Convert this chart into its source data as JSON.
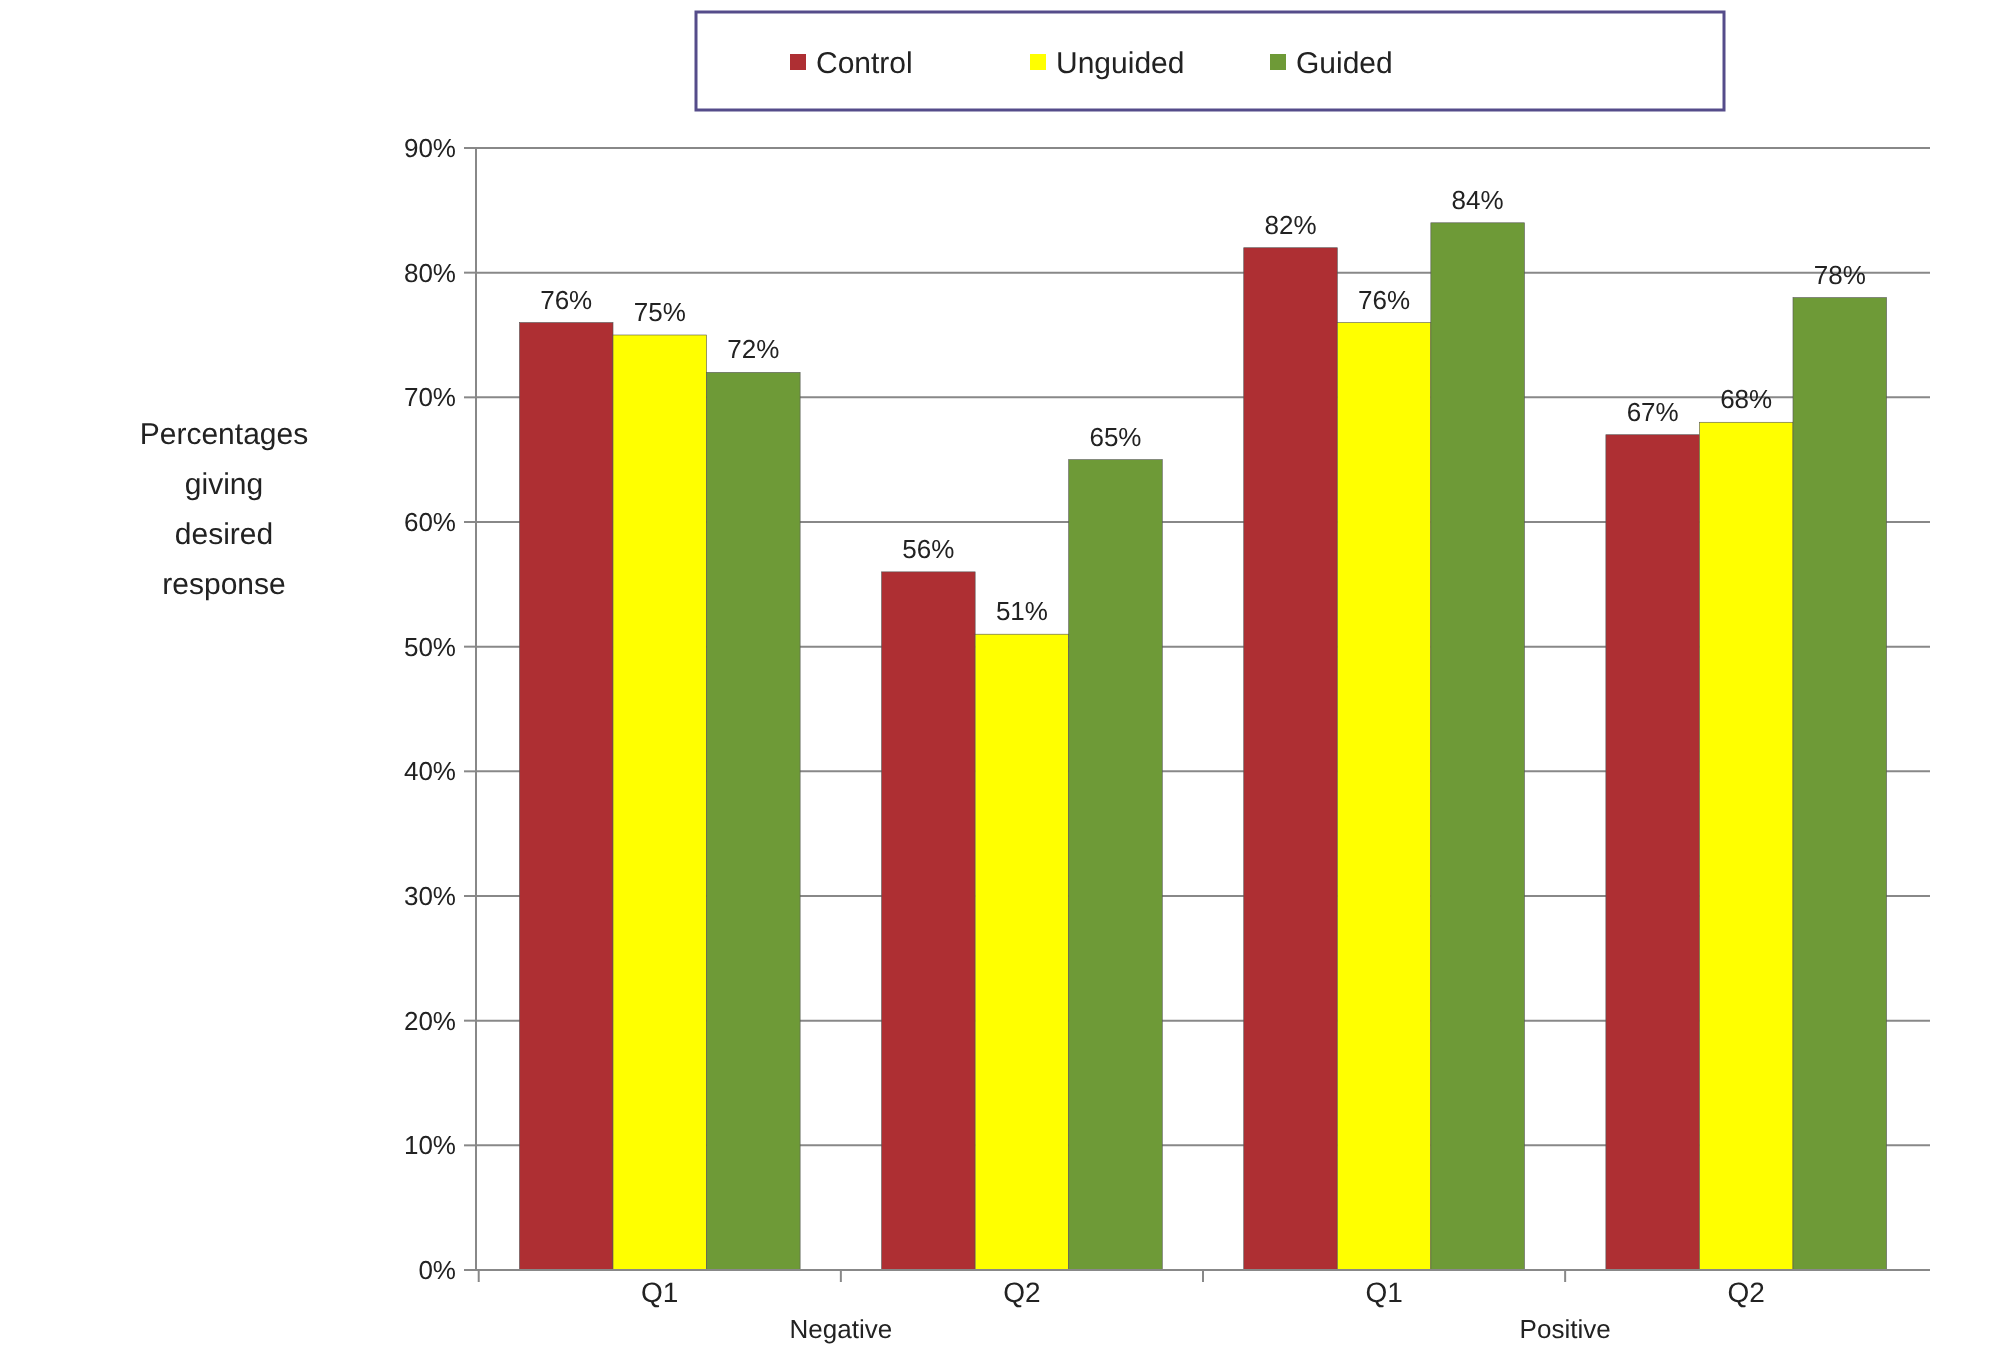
{
  "chart_data": {
    "type": "bar",
    "ylabel": "Percentages giving desired response",
    "categories": [
      "Q1",
      "Q2",
      "Q1",
      "Q2"
    ],
    "series": [
      {
        "name": "Control",
        "color": "#ae2f33",
        "values": [
          76,
          56,
          82,
          67
        ],
        "value_labels": [
          "76%",
          "56%",
          "82%",
          "67%"
        ]
      },
      {
        "name": "Unguided",
        "color": "#ffff00",
        "values": [
          75,
          51,
          76,
          68
        ],
        "value_labels": [
          "75%",
          "51%",
          "76%",
          "68%"
        ]
      },
      {
        "name": "Guided",
        "color": "#6e9a37",
        "values": [
          72,
          65,
          84,
          78
        ],
        "value_labels": [
          "72%",
          "65%",
          "84%",
          "78%"
        ]
      }
    ],
    "annotations": [
      "Negative",
      "Positive"
    ],
    "ylim": [
      0,
      90
    ],
    "yticks": [
      {
        "value": 0,
        "label": "0%"
      },
      {
        "value": 10,
        "label": "10%"
      },
      {
        "value": 20,
        "label": "20%"
      },
      {
        "value": 30,
        "label": "30%"
      },
      {
        "value": 40,
        "label": "40%"
      },
      {
        "value": 50,
        "label": "50%"
      },
      {
        "value": 60,
        "label": "60%"
      },
      {
        "value": 70,
        "label": "70%"
      },
      {
        "value": 80,
        "label": "80%"
      },
      {
        "value": 90,
        "label": "90%"
      }
    ],
    "grid": "y",
    "legend": "top"
  }
}
